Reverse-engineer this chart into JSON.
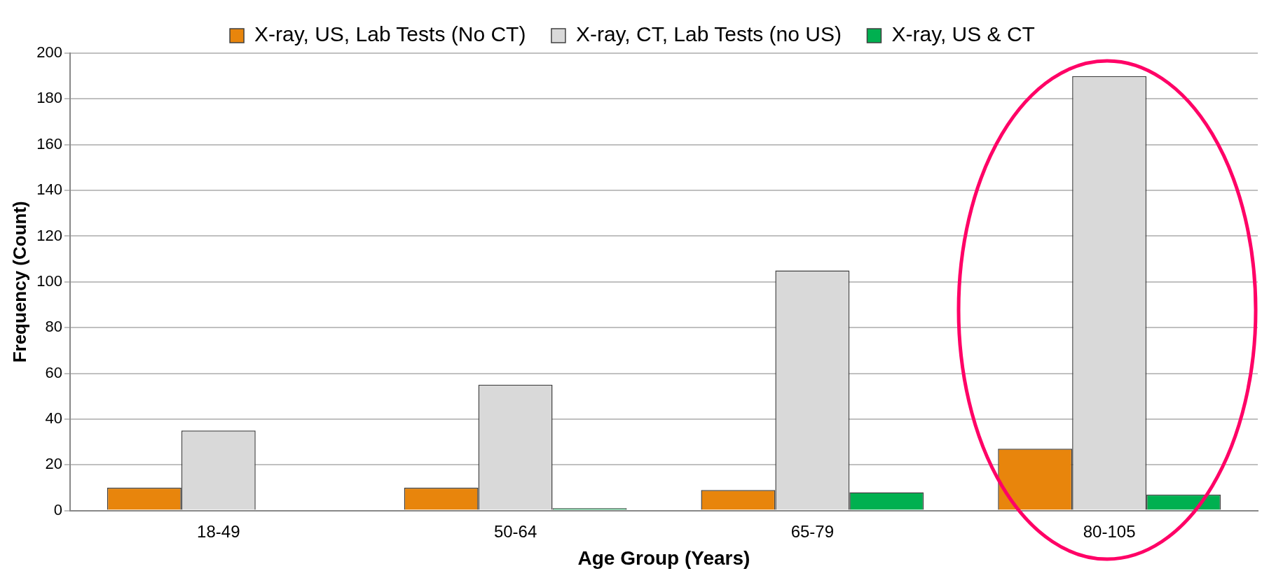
{
  "chart_data": {
    "type": "bar",
    "xlabel": "Age Group (Years)",
    "ylabel": "Frequency (Count)",
    "categories": [
      "18-49",
      "50-64",
      "65-79",
      "80-105"
    ],
    "series": [
      {
        "name": "X-ray, US, Lab Tests (No CT)",
        "color": "#e8850c",
        "values": [
          10,
          10,
          9,
          27
        ]
      },
      {
        "name": "X-ray, CT, Lab Tests (no US)",
        "color": "#d9d9d9",
        "values": [
          35,
          55,
          105,
          190
        ]
      },
      {
        "name": "X-ray, US & CT",
        "color": "#00b050",
        "values": [
          0,
          1,
          8,
          7
        ]
      }
    ],
    "ylim": [
      0,
      200
    ],
    "yticks": [
      0,
      20,
      40,
      60,
      80,
      100,
      120,
      140,
      160,
      180,
      200
    ],
    "grid": "y",
    "legend": "top"
  }
}
